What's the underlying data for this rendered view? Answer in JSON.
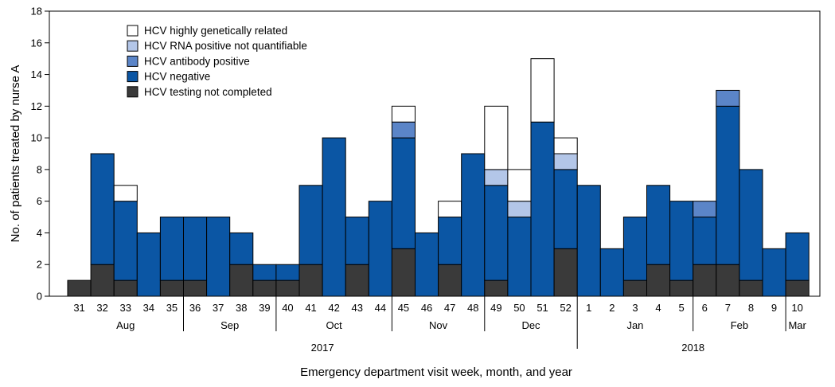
{
  "chart_data": {
    "type": "bar",
    "stacked": true,
    "title": "",
    "xlabel": "Emergency department visit week, month, and year",
    "ylabel": "No. of patients treated by nurse A",
    "ylim": [
      0,
      18
    ],
    "yticks": [
      0,
      2,
      4,
      6,
      8,
      10,
      12,
      14,
      16,
      18
    ],
    "grid": false,
    "legend_position": "top-left",
    "categories": [
      "31",
      "32",
      "33",
      "34",
      "35",
      "36",
      "37",
      "38",
      "39",
      "40",
      "41",
      "42",
      "43",
      "44",
      "45",
      "46",
      "47",
      "48",
      "49",
      "50",
      "51",
      "52",
      "1",
      "2",
      "3",
      "4",
      "5",
      "6",
      "7",
      "8",
      "9",
      "10"
    ],
    "months": [
      {
        "label": "Aug",
        "start": 0,
        "end": 4
      },
      {
        "label": "Sep",
        "start": 5,
        "end": 8
      },
      {
        "label": "Oct",
        "start": 9,
        "end": 13
      },
      {
        "label": "Nov",
        "start": 14,
        "end": 17
      },
      {
        "label": "Dec",
        "start": 18,
        "end": 21
      },
      {
        "label": "Jan",
        "start": 22,
        "end": 26
      },
      {
        "label": "Feb",
        "start": 27,
        "end": 30
      },
      {
        "label": "Mar",
        "start": 31,
        "end": 31
      }
    ],
    "years": [
      {
        "label": "2017",
        "start": 0,
        "end": 21
      },
      {
        "label": "2018",
        "start": 22,
        "end": 31
      }
    ],
    "series": [
      {
        "name": "HCV testing not completed",
        "color": "#3a3a3a",
        "values": [
          1,
          2,
          1,
          0,
          1,
          1,
          0,
          2,
          1,
          1,
          2,
          0,
          2,
          0,
          3,
          0,
          2,
          0,
          1,
          0,
          0,
          3,
          0,
          0,
          1,
          2,
          1,
          2,
          2,
          1,
          0,
          1
        ]
      },
      {
        "name": "HCV negative",
        "color": "#0b56a4",
        "values": [
          0,
          7,
          5,
          4,
          4,
          4,
          5,
          2,
          1,
          1,
          5,
          10,
          3,
          6,
          7,
          4,
          3,
          9,
          6,
          5,
          11,
          5,
          7,
          3,
          4,
          5,
          5,
          3,
          10,
          7,
          3,
          3
        ]
      },
      {
        "name": "HCV antibody positive",
        "color": "#5b85c8",
        "values": [
          0,
          0,
          0,
          0,
          0,
          0,
          0,
          0,
          0,
          0,
          0,
          0,
          0,
          0,
          1,
          0,
          0,
          0,
          0,
          0,
          0,
          0,
          0,
          0,
          0,
          0,
          0,
          1,
          1,
          0,
          0,
          0
        ]
      },
      {
        "name": "HCV RNA positive not quantifiable",
        "color": "#b3c6e8",
        "values": [
          0,
          0,
          0,
          0,
          0,
          0,
          0,
          0,
          0,
          0,
          0,
          0,
          0,
          0,
          0,
          0,
          0,
          0,
          1,
          1,
          0,
          1,
          0,
          0,
          0,
          0,
          0,
          0,
          0,
          0,
          0,
          0
        ]
      },
      {
        "name": "HCV highly genetically related",
        "color": "#ffffff",
        "values": [
          0,
          0,
          1,
          0,
          0,
          0,
          0,
          0,
          0,
          0,
          0,
          0,
          0,
          0,
          1,
          0,
          1,
          0,
          4,
          2,
          4,
          1,
          0,
          0,
          0,
          0,
          0,
          0,
          0,
          0,
          0,
          0
        ]
      }
    ]
  }
}
